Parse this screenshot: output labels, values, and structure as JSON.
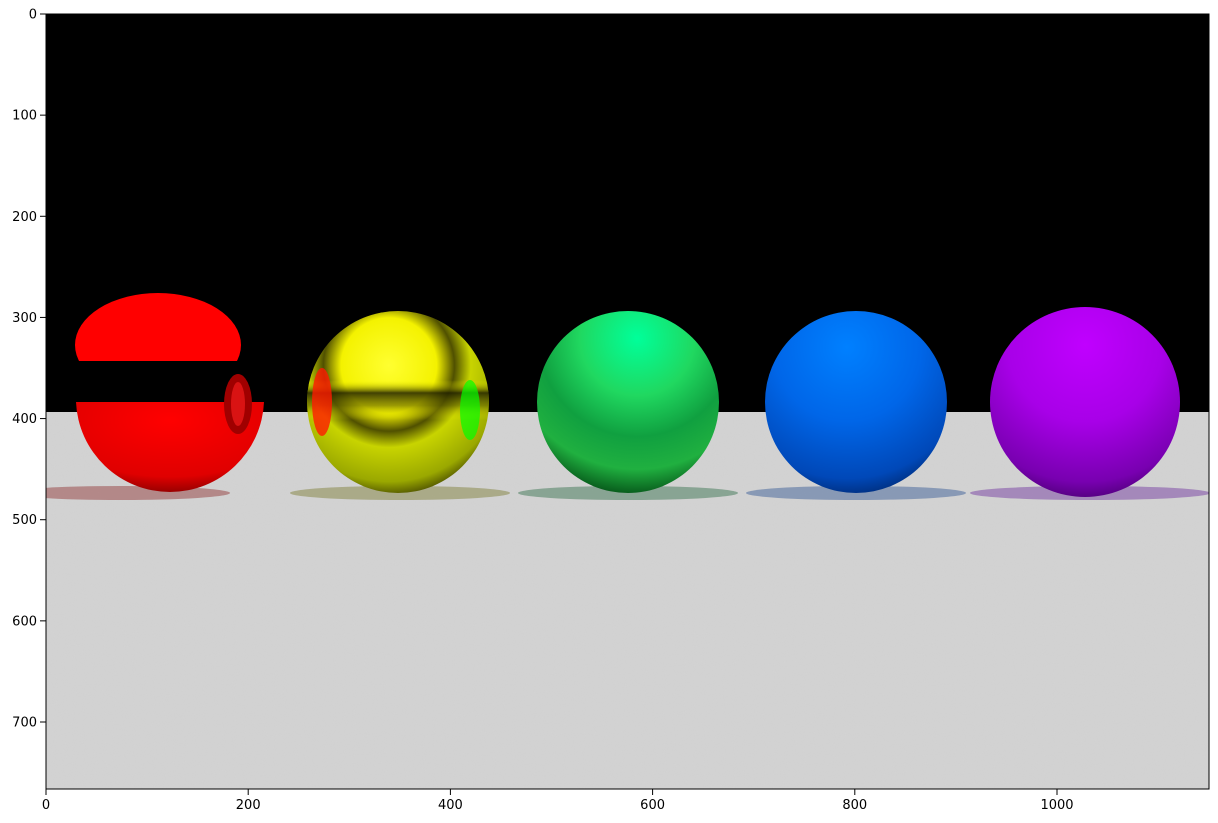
{
  "image": {
    "description_free": true,
    "background_color": "#000000",
    "floor_color": "#d4d4d4",
    "spheres": [
      {
        "name": "red-sphere",
        "color": "#ff0000"
      },
      {
        "name": "yellow-sphere",
        "color": "#e8f000"
      },
      {
        "name": "green-sphere",
        "color": "#00d860"
      },
      {
        "name": "blue-sphere",
        "color": "#0060f0"
      },
      {
        "name": "violet-sphere",
        "color": "#b000f0"
      }
    ]
  },
  "axes": {
    "x_ticks": [
      {
        "value": 0,
        "label": "0"
      },
      {
        "value": 200,
        "label": "200"
      },
      {
        "value": 400,
        "label": "400"
      },
      {
        "value": 600,
        "label": "600"
      },
      {
        "value": 800,
        "label": "800"
      },
      {
        "value": 1000,
        "label": "1000"
      }
    ],
    "y_ticks": [
      {
        "value": 0,
        "label": "0"
      },
      {
        "value": 100,
        "label": "100"
      },
      {
        "value": 200,
        "label": "200"
      },
      {
        "value": 300,
        "label": "300"
      },
      {
        "value": 400,
        "label": "400"
      },
      {
        "value": 500,
        "label": "500"
      },
      {
        "value": 600,
        "label": "600"
      },
      {
        "value": 700,
        "label": "700"
      }
    ],
    "x_range": [
      0,
      1150
    ],
    "y_range": [
      0,
      766
    ]
  }
}
